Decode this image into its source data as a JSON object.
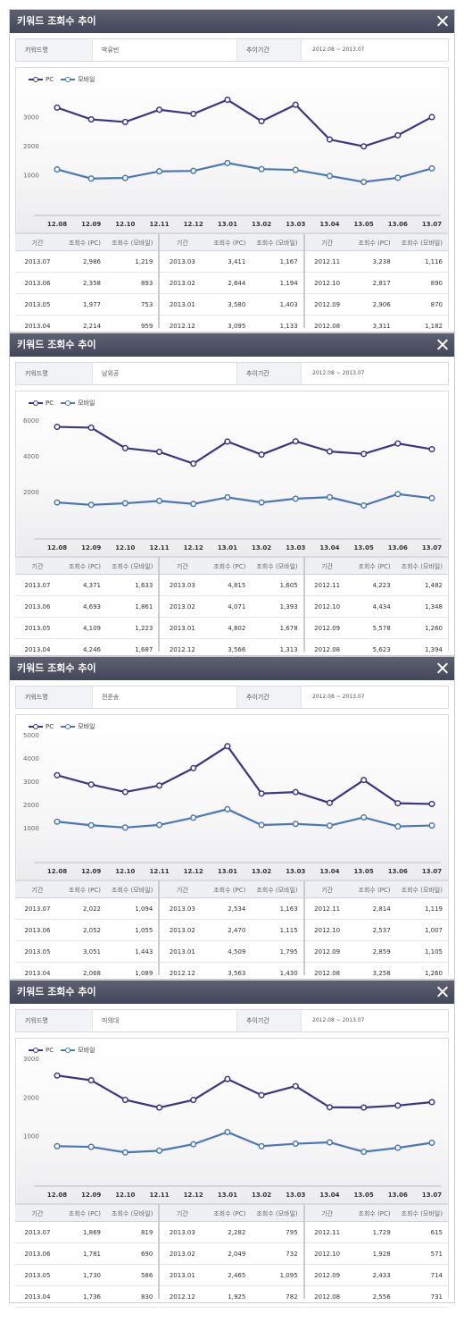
{
  "colors": {
    "pc": "#3a3586",
    "mobile": "#4b77b8",
    "titlebar": "#4a4e60"
  },
  "x_labels": [
    "12.08",
    "12.09",
    "12.10",
    "12.11",
    "12.12",
    "13.01",
    "13.02",
    "13.03",
    "13.04",
    "13.05",
    "13.06",
    "13.07"
  ],
  "panels": [
    {
      "title": "키워드 조회수 추이",
      "keyword_label": "키워드명",
      "keyword_value": "박유빈",
      "period_label": "추이기간",
      "period_value": "2012.08 ~ 2013.07",
      "legend": {
        "pc": "PC",
        "mobile": "모바일"
      },
      "headers": [
        "기간",
        "조회수 (PC)",
        "조회수 (모바일)"
      ],
      "table": [
        [
          [
            "2013.07",
            "2,986",
            "1,219"
          ],
          [
            "2013.06",
            "2,358",
            "893"
          ],
          [
            "2013.05",
            "1,977",
            "753"
          ],
          [
            "2013.04",
            "2,214",
            "959"
          ]
        ],
        [
          [
            "2013.03",
            "3,411",
            "1,167"
          ],
          [
            "2013.02",
            "2,844",
            "1,194"
          ],
          [
            "2013.01",
            "3,580",
            "1,403"
          ],
          [
            "2012.12",
            "3,095",
            "1,133"
          ]
        ],
        [
          [
            "2012.11",
            "3,238",
            "1,116"
          ],
          [
            "2012.10",
            "2,817",
            "890"
          ],
          [
            "2012.09",
            "2,906",
            "870"
          ],
          [
            "2012.08",
            "3,311",
            "1,182"
          ]
        ]
      ]
    },
    {
      "title": "키워드 조회수 추이",
      "keyword_label": "키워드명",
      "keyword_value": "남위공",
      "period_label": "추이기간",
      "period_value": "2012.08 ~ 2013.07",
      "legend": {
        "pc": "PC",
        "mobile": "모바일"
      },
      "headers": [
        "기간",
        "조회수 (PC)",
        "조회수 (모바일)"
      ],
      "table": [
        [
          [
            "2013.07",
            "4,371",
            "1,633"
          ],
          [
            "2013.06",
            "4,693",
            "1,861"
          ],
          [
            "2013.05",
            "4,109",
            "1,223"
          ],
          [
            "2013.04",
            "4,246",
            "1,687"
          ]
        ],
        [
          [
            "2013.03",
            "4,815",
            "1,605"
          ],
          [
            "2013.02",
            "4,071",
            "1,393"
          ],
          [
            "2013.01",
            "4,802",
            "1,678"
          ],
          [
            "2012.12",
            "3,566",
            "1,313"
          ]
        ],
        [
          [
            "2012.11",
            "4,223",
            "1,482"
          ],
          [
            "2012.10",
            "4,434",
            "1,348"
          ],
          [
            "2012.09",
            "5,578",
            "1,260"
          ],
          [
            "2012.08",
            "5,623",
            "1,394"
          ]
        ]
      ]
    },
    {
      "title": "키워드 조회수 추이",
      "keyword_label": "키워드명",
      "keyword_value": "전준송",
      "period_label": "추이기간",
      "period_value": "2012.08 ~ 2013.07",
      "legend": {
        "pc": "PC",
        "mobile": "모바일"
      },
      "headers": [
        "기간",
        "조회수 (PC)",
        "조회수 (모바일)"
      ],
      "table": [
        [
          [
            "2013.07",
            "2,022",
            "1,094"
          ],
          [
            "2013.06",
            "2,052",
            "1,055"
          ],
          [
            "2013.05",
            "3,051",
            "1,443"
          ],
          [
            "2013.04",
            "2,068",
            "1,089"
          ]
        ],
        [
          [
            "2013.03",
            "2,534",
            "1,163"
          ],
          [
            "2013.02",
            "2,470",
            "1,115"
          ],
          [
            "2013.01",
            "4,509",
            "1,795"
          ],
          [
            "2012.12",
            "3,563",
            "1,430"
          ]
        ],
        [
          [
            "2012.11",
            "2,814",
            "1,119"
          ],
          [
            "2012.10",
            "2,537",
            "1,007"
          ],
          [
            "2012.09",
            "2,859",
            "1,105"
          ],
          [
            "2012.08",
            "3,258",
            "1,260"
          ]
        ]
      ]
    },
    {
      "title": "키워드 조회수 추이",
      "keyword_label": "키워드명",
      "keyword_value": "미의대",
      "period_label": "추이기간",
      "period_value": "2012.08 ~ 2013.07",
      "legend": {
        "pc": "PC",
        "mobile": "모바일"
      },
      "headers": [
        "기간",
        "조회수 (PC)",
        "조회수 (모바일)"
      ],
      "table": [
        [
          [
            "2013.07",
            "1,869",
            "819"
          ],
          [
            "2013.06",
            "1,781",
            "690"
          ],
          [
            "2013.05",
            "1,730",
            "586"
          ],
          [
            "2013.04",
            "1,736",
            "830"
          ]
        ],
        [
          [
            "2013.03",
            "2,282",
            "795"
          ],
          [
            "2013.02",
            "2,049",
            "732"
          ],
          [
            "2013.01",
            "2,465",
            "1,095"
          ],
          [
            "2012.12",
            "1,925",
            "782"
          ]
        ],
        [
          [
            "2012.11",
            "1,729",
            "615"
          ],
          [
            "2012.10",
            "1,928",
            "571"
          ],
          [
            "2012.09",
            "2,433",
            "714"
          ],
          [
            "2012.08",
            "2,556",
            "731"
          ]
        ]
      ]
    }
  ],
  "chart_data": [
    {
      "type": "line",
      "x": [
        "12.08",
        "12.09",
        "12.10",
        "12.11",
        "12.12",
        "13.01",
        "13.02",
        "13.03",
        "13.04",
        "13.05",
        "13.06",
        "13.07"
      ],
      "y_ticks": [
        1000,
        2000,
        3000
      ],
      "ylim": [
        0,
        4000
      ],
      "series": [
        {
          "name": "PC",
          "values": [
            3311,
            2906,
            2817,
            3238,
            3095,
            3580,
            2844,
            3411,
            2214,
            1977,
            2358,
            2986
          ]
        },
        {
          "name": "모바일",
          "values": [
            1182,
            870,
            890,
            1116,
            1133,
            1403,
            1194,
            1167,
            959,
            753,
            893,
            1219
          ]
        }
      ]
    },
    {
      "type": "line",
      "x": [
        "12.08",
        "12.09",
        "12.10",
        "12.11",
        "12.12",
        "13.01",
        "13.02",
        "13.03",
        "13.04",
        "13.05",
        "13.06",
        "13.07"
      ],
      "y_ticks": [
        2000,
        4000,
        6000
      ],
      "ylim": [
        0,
        6500
      ],
      "series": [
        {
          "name": "PC",
          "values": [
            5623,
            5578,
            4434,
            4223,
            3566,
            4802,
            4071,
            4815,
            4246,
            4109,
            4693,
            4371
          ]
        },
        {
          "name": "모바일",
          "values": [
            1394,
            1260,
            1348,
            1482,
            1313,
            1678,
            1393,
            1605,
            1687,
            1223,
            1861,
            1633
          ]
        }
      ]
    },
    {
      "type": "line",
      "x": [
        "12.08",
        "12.09",
        "12.10",
        "12.11",
        "12.12",
        "13.01",
        "13.02",
        "13.03",
        "13.04",
        "13.05",
        "13.06",
        "13.07"
      ],
      "y_ticks": [
        1000,
        2000,
        3000,
        4000,
        5000
      ],
      "ylim": [
        0,
        5000
      ],
      "series": [
        {
          "name": "PC",
          "values": [
            3258,
            2859,
            2537,
            2814,
            3563,
            4509,
            2470,
            2534,
            2068,
            3051,
            2052,
            2022
          ]
        },
        {
          "name": "모바일",
          "values": [
            1260,
            1105,
            1007,
            1119,
            1430,
            1795,
            1115,
            1163,
            1089,
            1443,
            1055,
            1094
          ]
        }
      ]
    },
    {
      "type": "line",
      "x": [
        "12.08",
        "12.09",
        "12.10",
        "12.11",
        "12.12",
        "13.01",
        "13.02",
        "13.03",
        "13.04",
        "13.05",
        "13.06",
        "13.07"
      ],
      "y_ticks": [
        1000,
        2000,
        3000
      ],
      "ylim": [
        0,
        3000
      ],
      "series": [
        {
          "name": "PC",
          "values": [
            2556,
            2433,
            1928,
            1729,
            1925,
            2465,
            2049,
            2282,
            1736,
            1730,
            1781,
            1869
          ]
        },
        {
          "name": "모바일",
          "values": [
            731,
            714,
            571,
            615,
            782,
            1095,
            732,
            795,
            830,
            586,
            690,
            819
          ]
        }
      ]
    }
  ]
}
